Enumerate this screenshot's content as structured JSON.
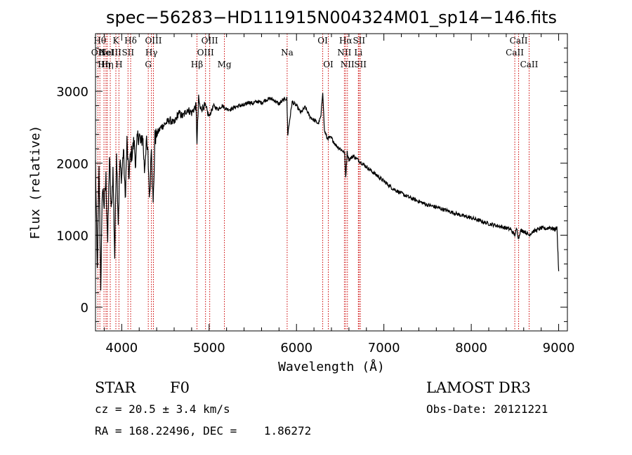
{
  "chart_data": {
    "type": "line",
    "title": "spec−56283−HD111915N004324M01_sp14−146.fits",
    "xlabel": "Wavelength (Å)",
    "ylabel": "Flux (relative)",
    "xlim": [
      3700,
      9100
    ],
    "ylim": [
      -330,
      3800
    ],
    "xticks": [
      {
        "value": 4000,
        "label": "4000"
      },
      {
        "value": 5000,
        "label": "5000"
      },
      {
        "value": 6000,
        "label": "6000"
      },
      {
        "value": 7000,
        "label": "7000"
      },
      {
        "value": 8000,
        "label": "8000"
      },
      {
        "value": 9000,
        "label": "9000"
      }
    ],
    "yticks": [
      {
        "value": 0,
        "label": "0"
      },
      {
        "value": 1000,
        "label": "1000"
      },
      {
        "value": 2000,
        "label": "2000"
      },
      {
        "value": 3000,
        "label": "3000"
      }
    ],
    "grid": false,
    "series": [
      {
        "name": "spectrum",
        "color": "#000000",
        "x": [
          3700,
          3720,
          3740,
          3760,
          3780,
          3800,
          3820,
          3840,
          3860,
          3880,
          3900,
          3920,
          3940,
          3960,
          3980,
          4000,
          4020,
          4040,
          4060,
          4080,
          4100,
          4120,
          4140,
          4160,
          4180,
          4200,
          4220,
          4240,
          4260,
          4280,
          4300,
          4320,
          4340,
          4360,
          4380,
          4400,
          4450,
          4500,
          4550,
          4600,
          4650,
          4700,
          4750,
          4800,
          4850,
          4861,
          4880,
          4900,
          4950,
          5000,
          5050,
          5100,
          5150,
          5200,
          5250,
          5300,
          5350,
          5400,
          5450,
          5500,
          5550,
          5600,
          5650,
          5700,
          5750,
          5800,
          5850,
          5890,
          5900,
          5950,
          6000,
          6050,
          6100,
          6150,
          6200,
          6250,
          6280,
          6300,
          6320,
          6350,
          6400,
          6450,
          6500,
          6550,
          6563,
          6580,
          6600,
          6650,
          6700,
          6750,
          6800,
          6850,
          6900,
          6950,
          7000,
          7100,
          7200,
          7300,
          7400,
          7500,
          7600,
          7700,
          7800,
          7900,
          8000,
          8100,
          8200,
          8300,
          8400,
          8450,
          8498,
          8520,
          8542,
          8560,
          8600,
          8662,
          8700,
          8750,
          8800,
          8850,
          8900,
          8950,
          8980,
          9000
        ],
        "y": [
          2000,
          500,
          1900,
          300,
          1700,
          1400,
          1800,
          900,
          2100,
          1300,
          1900,
          700,
          2200,
          1200,
          2000,
          1800,
          2200,
          1500,
          2300,
          1800,
          2100,
          2150,
          2300,
          2000,
          2350,
          2400,
          2250,
          2400,
          1900,
          2300,
          2100,
          1500,
          2300,
          1400,
          2350,
          2400,
          2500,
          2550,
          2600,
          2550,
          2700,
          2650,
          2750,
          2700,
          2800,
          2300,
          2900,
          2750,
          2800,
          2650,
          2800,
          2750,
          2800,
          2750,
          2750,
          2780,
          2800,
          2800,
          2850,
          2830,
          2860,
          2840,
          2880,
          2900,
          2870,
          2820,
          2880,
          2900,
          2400,
          2850,
          2800,
          2700,
          2780,
          2650,
          2600,
          2550,
          2650,
          3000,
          2450,
          2350,
          2350,
          2250,
          2200,
          2150,
          1800,
          2150,
          2050,
          2100,
          2050,
          2000,
          1950,
          1900,
          1850,
          1800,
          1750,
          1650,
          1580,
          1520,
          1470,
          1420,
          1390,
          1350,
          1310,
          1270,
          1240,
          1200,
          1160,
          1130,
          1100,
          1080,
          1000,
          1090,
          950,
          1060,
          1060,
          1000,
          1050,
          1070,
          1100,
          1090,
          1110,
          1080,
          1100,
          500
        ]
      }
    ],
    "lines": [
      {
        "x": 3727,
        "label": "OII",
        "row": 2
      },
      {
        "x": 3750,
        "label": "Hθ",
        "row": 1
      },
      {
        "x": 3797,
        "label": "Hη",
        "row": 3
      },
      {
        "x": 3820,
        "label": "HeI",
        "row": 2
      },
      {
        "x": 3835,
        "label": "Hη",
        "row": 3
      },
      {
        "x": 3869,
        "label": "NeIII",
        "row": 2
      },
      {
        "x": 3933,
        "label": "K",
        "row": 1
      },
      {
        "x": 3968,
        "label": "H",
        "row": 3
      },
      {
        "x": 4072,
        "label": "SII",
        "row": 2
      },
      {
        "x": 4102,
        "label": "Hδ",
        "row": 1
      },
      {
        "x": 4304,
        "label": "G",
        "row": 3
      },
      {
        "x": 4340,
        "label": "Hγ",
        "row": 2
      },
      {
        "x": 4363,
        "label": "OIII",
        "row": 1
      },
      {
        "x": 4861,
        "label": "Hβ",
        "row": 3
      },
      {
        "x": 4959,
        "label": "OIII",
        "row": 2
      },
      {
        "x": 5007,
        "label": "OIII",
        "row": 1
      },
      {
        "x": 5175,
        "label": "Mg",
        "row": 3
      },
      {
        "x": 5893,
        "label": "Na",
        "row": 2
      },
      {
        "x": 6300,
        "label": "OI",
        "row": 1
      },
      {
        "x": 6364,
        "label": "OI",
        "row": 3
      },
      {
        "x": 6548,
        "label": "NII",
        "row": 2
      },
      {
        "x": 6563,
        "label": "Hα",
        "row": 1
      },
      {
        "x": 6583,
        "label": "NII",
        "row": 3
      },
      {
        "x": 6708,
        "label": "Li",
        "row": 2
      },
      {
        "x": 6716,
        "label": "SII",
        "row": 1
      },
      {
        "x": 6731,
        "label": "SII",
        "row": 3
      },
      {
        "x": 8498,
        "label": "CaII",
        "row": 2
      },
      {
        "x": 8542,
        "label": "CaII",
        "row": 1
      },
      {
        "x": 8662,
        "label": "CaII",
        "row": 3
      }
    ],
    "line_color": "#cc0000"
  },
  "info": {
    "object_type": "STAR",
    "subclass": "F0",
    "redshift": "cz = 20.5 ± 3.4 km/s",
    "coords": "RA = 168.22496, DEC =    1.86272",
    "survey": "LAMOST DR3",
    "obs_date": "Obs-Date: 20121221"
  }
}
